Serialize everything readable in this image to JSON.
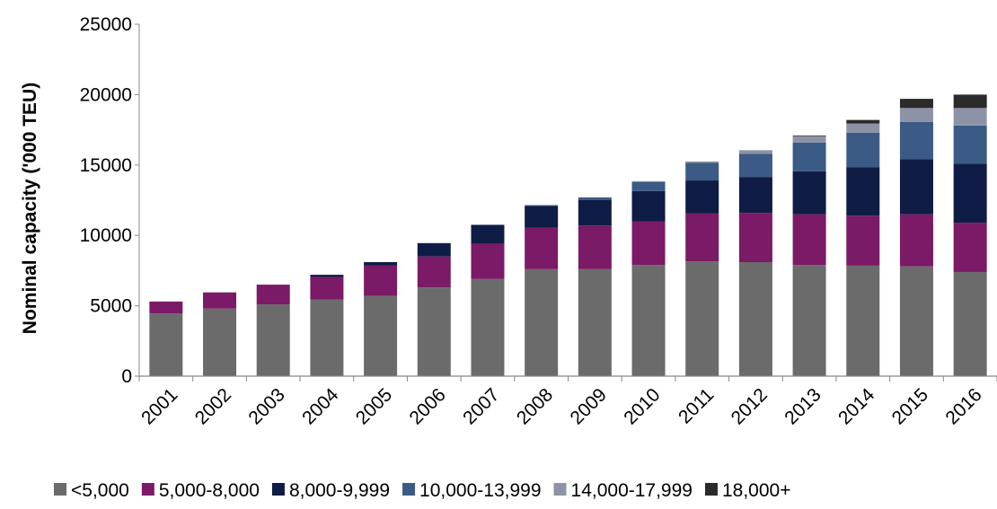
{
  "chart_data": {
    "type": "bar",
    "stacked": true,
    "categories": [
      "2001",
      "2002",
      "2003",
      "2004",
      "2005",
      "2006",
      "2007",
      "2008",
      "2009",
      "2010",
      "2011",
      "2012",
      "2013",
      "2014",
      "2015",
      "2016"
    ],
    "ylabel": "Nominal capacity ('000 TEU)",
    "ylim": [
      0,
      25000
    ],
    "yticks": [
      "0",
      "5000",
      "10000",
      "15000",
      "20000",
      "25000"
    ],
    "legend_position": "bottom",
    "grid": false,
    "series": [
      {
        "name": "<5,000",
        "color": "#6b6b6b",
        "values": [
          4450,
          4800,
          5100,
          5450,
          5700,
          6300,
          6900,
          7600,
          7600,
          7900,
          8150,
          8100,
          7900,
          7850,
          7800,
          7400
        ]
      },
      {
        "name": "5,000-8,000",
        "color": "#7b1a66",
        "values": [
          850,
          1150,
          1400,
          1600,
          2150,
          2200,
          2500,
          2950,
          3100,
          3100,
          3400,
          3500,
          3600,
          3550,
          3700,
          3500
        ]
      },
      {
        "name": "8,000-9,999",
        "color": "#0f1c45",
        "values": [
          0,
          0,
          0,
          150,
          250,
          950,
          1350,
          1550,
          1800,
          2150,
          2350,
          2550,
          3050,
          3450,
          3900,
          4200
        ]
      },
      {
        "name": "10,000-13,999",
        "color": "#3b5a85",
        "values": [
          0,
          0,
          0,
          0,
          0,
          0,
          0,
          50,
          200,
          650,
          1250,
          1650,
          2050,
          2450,
          2650,
          2700
        ]
      },
      {
        "name": "14,000-17,999",
        "color": "#8d93a6",
        "values": [
          0,
          0,
          0,
          0,
          0,
          0,
          0,
          0,
          0,
          50,
          100,
          250,
          450,
          650,
          1000,
          1250
        ]
      },
      {
        "name": "18,000+",
        "color": "#2b2b2b",
        "values": [
          0,
          0,
          0,
          0,
          0,
          0,
          0,
          0,
          0,
          0,
          0,
          0,
          50,
          250,
          650,
          950
        ]
      }
    ]
  }
}
